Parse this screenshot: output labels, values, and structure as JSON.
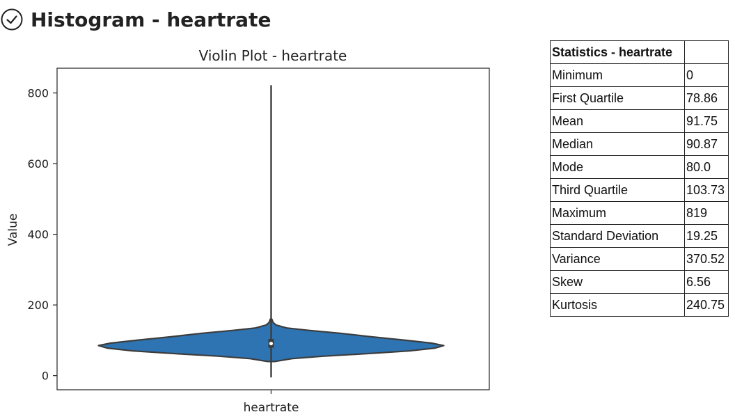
{
  "header": {
    "title": "Histogram - heartrate",
    "icon": "check-circle-icon"
  },
  "chart_data": {
    "type": "violin",
    "title": "Violin Plot - heartrate",
    "xlabel": "",
    "ylabel": "Value",
    "categories": [
      "heartrate"
    ],
    "ylim": [
      -40,
      870
    ],
    "yticks": [
      0,
      200,
      400,
      600,
      800
    ],
    "grid": false,
    "color": "#2e74b2",
    "whisker_range": [
      -5,
      822
    ],
    "box": {
      "q1": 78.86,
      "median": 90.87,
      "q3": 103.73
    },
    "density": [
      {
        "y": 40,
        "w": 0.02
      },
      {
        "y": 48,
        "w": 0.12
      },
      {
        "y": 55,
        "w": 0.3
      },
      {
        "y": 62,
        "w": 0.55
      },
      {
        "y": 70,
        "w": 0.8
      },
      {
        "y": 78,
        "w": 0.95
      },
      {
        "y": 85,
        "w": 1.0
      },
      {
        "y": 92,
        "w": 0.93
      },
      {
        "y": 100,
        "w": 0.78
      },
      {
        "y": 110,
        "w": 0.58
      },
      {
        "y": 120,
        "w": 0.4
      },
      {
        "y": 128,
        "w": 0.22
      },
      {
        "y": 135,
        "w": 0.09
      },
      {
        "y": 143,
        "w": 0.03
      },
      {
        "y": 150,
        "w": 0.012
      },
      {
        "y": 160,
        "w": 0.004
      }
    ]
  },
  "stats": {
    "title": "Statistics - heartrate",
    "rows": [
      {
        "label": "Minimum",
        "value": "0"
      },
      {
        "label": "First Quartile",
        "value": "78.86"
      },
      {
        "label": "Mean",
        "value": "91.75"
      },
      {
        "label": "Median",
        "value": "90.87"
      },
      {
        "label": "Mode",
        "value": "80.0"
      },
      {
        "label": "Third Quartile",
        "value": "103.73"
      },
      {
        "label": "Maximum",
        "value": "819"
      },
      {
        "label": "Standard Deviation",
        "value": "19.25"
      },
      {
        "label": "Variance",
        "value": "370.52"
      },
      {
        "label": "Skew",
        "value": "6.56"
      },
      {
        "label": "Kurtosis",
        "value": "240.75"
      }
    ]
  }
}
